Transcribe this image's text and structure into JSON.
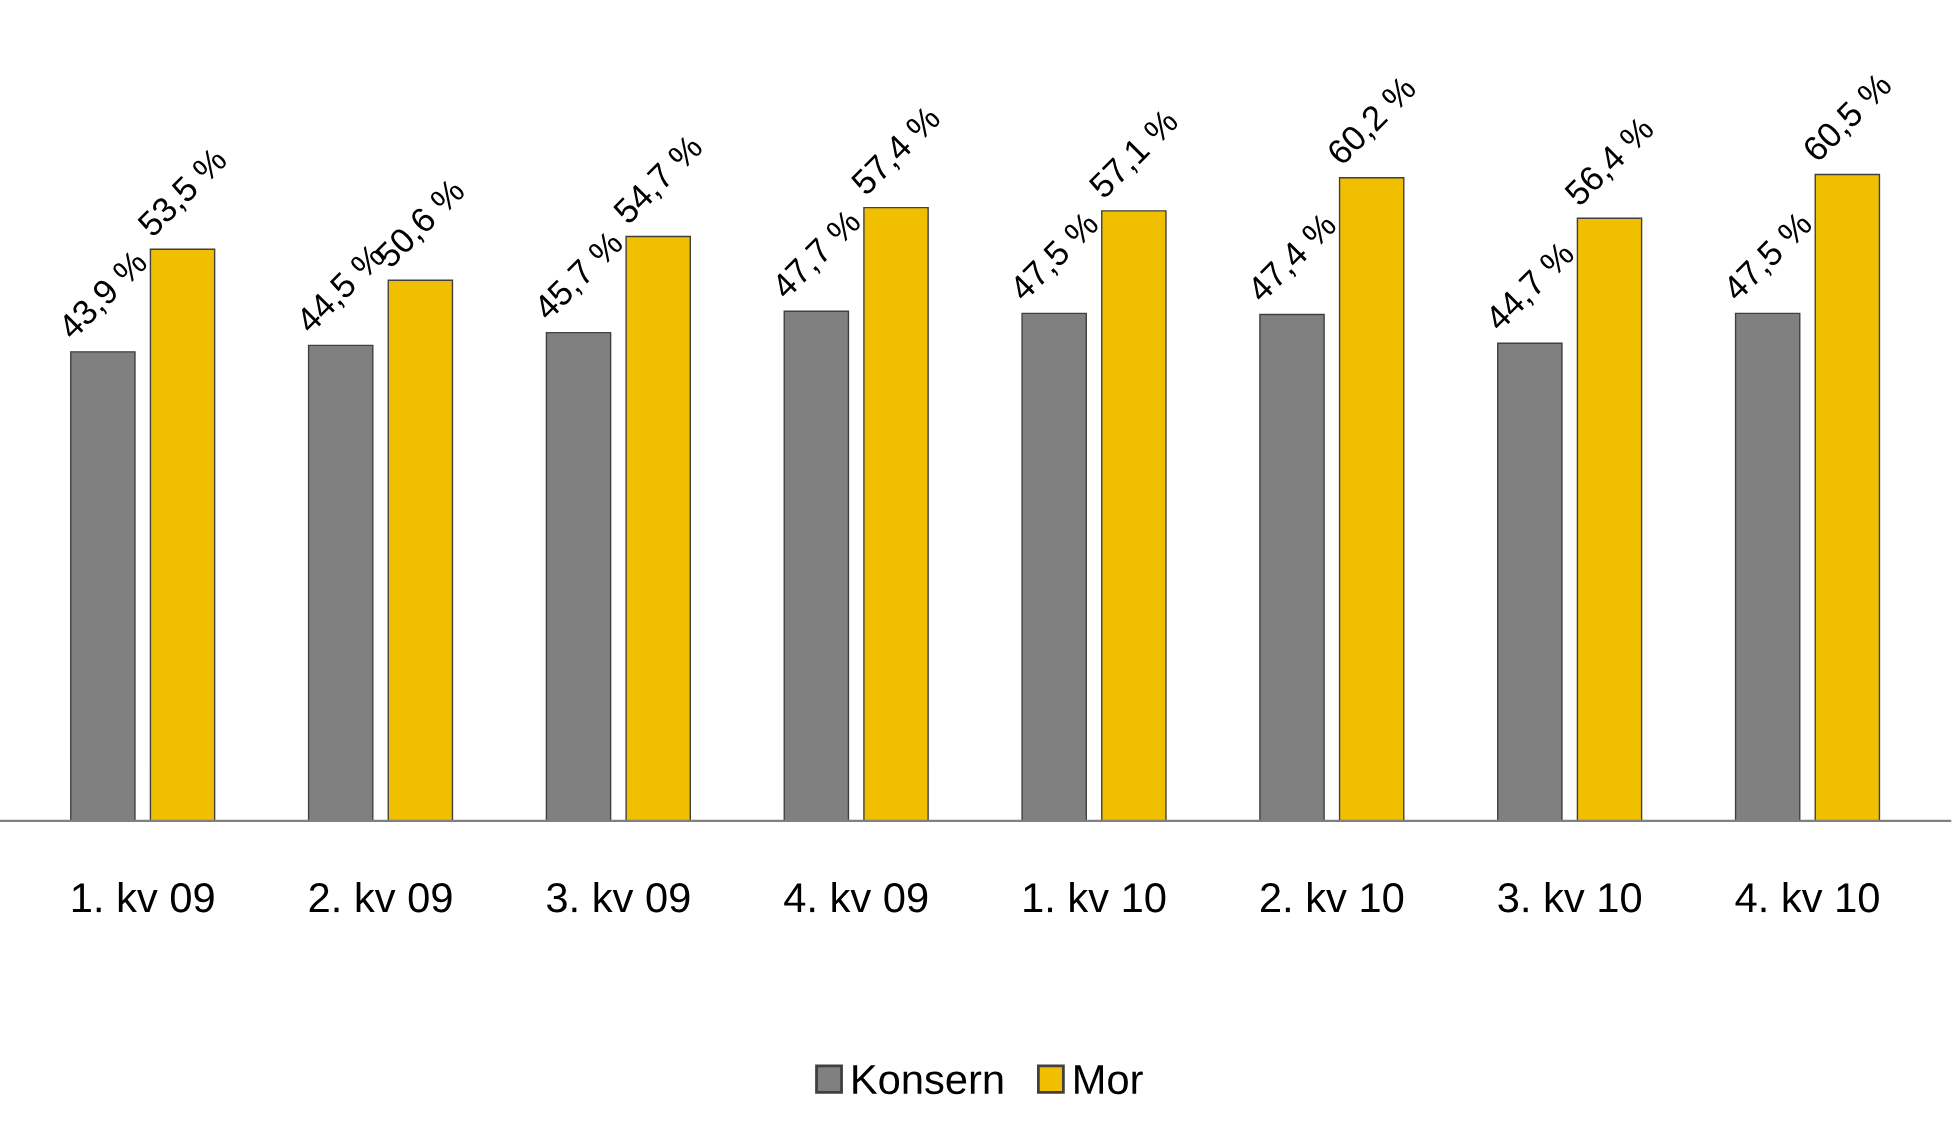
{
  "chart_data": {
    "type": "bar",
    "categories": [
      "1. kv 09",
      "2. kv 09",
      "3. kv 09",
      "4. kv 09",
      "1. kv 10",
      "2. kv 10",
      "3. kv 10",
      "4. kv 10"
    ],
    "series": [
      {
        "name": "Konsern",
        "color": "#808080",
        "values": [
          43.9,
          44.5,
          45.7,
          47.7,
          47.5,
          47.4,
          44.7,
          47.5
        ],
        "value_labels": [
          "43,9 %",
          "44,5 %",
          "45,7 %",
          "47,7 %",
          "47,5 %",
          "47,4 %",
          "44,7 %",
          "47,5 %"
        ]
      },
      {
        "name": "Mor",
        "color": "#f0c000",
        "values": [
          53.5,
          50.6,
          54.7,
          57.4,
          57.1,
          60.2,
          56.4,
          60.5
        ],
        "value_labels": [
          "53,5 %",
          "50,6 %",
          "54,7 %",
          "57,4 %",
          "57,1 %",
          "60,2 %",
          "56,4 %",
          "60,5 %"
        ]
      }
    ],
    "legend": "bottom"
  }
}
